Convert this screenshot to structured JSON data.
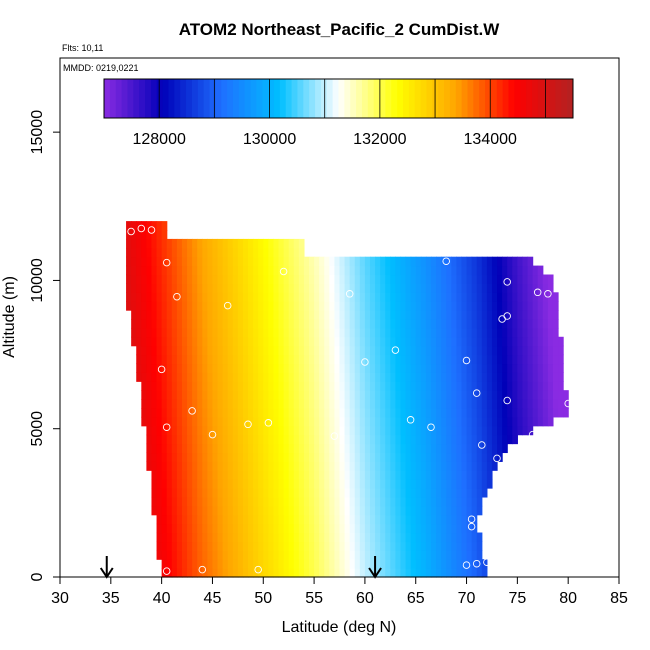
{
  "chart_data": {
    "type": "heatmap",
    "title": "ATOM2 Northeast_Pacific_2 CumDist.W",
    "flights_note": "Flts: 10,11",
    "dates_note": "MMDD: 0219,0221",
    "xlabel": "Latitude (deg N)",
    "ylabel": "Altitude (m)",
    "xlim": [
      30,
      85
    ],
    "ylim": [
      0,
      17500
    ],
    "x_ticks": [
      "30",
      "35",
      "40",
      "45",
      "50",
      "55",
      "60",
      "65",
      "70",
      "75",
      "80",
      "85"
    ],
    "y_ticks": [
      "0",
      "5000",
      "10000",
      "15000"
    ],
    "colorbar": {
      "range": [
        127000,
        135500
      ],
      "tick_labels": [
        "128000",
        "130000",
        "132000",
        "134000"
      ],
      "colors": [
        "#8a2be2",
        "#0000b8",
        "#1e6fff",
        "#00bfff",
        "#ffffff",
        "#ffff00",
        "#ffa500",
        "#ff0000",
        "#b22222"
      ]
    },
    "field": {
      "left_edge_lat": [
        [
          0,
          40.0
        ],
        [
          3000,
          39.0
        ],
        [
          6000,
          38.0
        ],
        [
          9000,
          36.8
        ],
        [
          10500,
          36.2
        ],
        [
          11900,
          36.5
        ]
      ],
      "right_edge_lat": [
        [
          0,
          72.0
        ],
        [
          2000,
          71.0
        ],
        [
          4500,
          74.0
        ],
        [
          5500,
          80.0
        ],
        [
          7000,
          79.5
        ],
        [
          9000,
          79.0
        ],
        [
          10000,
          78.5
        ],
        [
          11000,
          75.5
        ]
      ],
      "top_profile": [
        [
          36.5,
          11900
        ],
        [
          40.0,
          11900
        ],
        [
          40.5,
          11400
        ],
        [
          53.5,
          11400
        ],
        [
          54.0,
          10700
        ],
        [
          75.5,
          10700
        ]
      ],
      "value_stops": [
        [
          36,
          135400
        ],
        [
          40,
          134600
        ],
        [
          44,
          133800
        ],
        [
          50,
          132800
        ],
        [
          55,
          132000
        ],
        [
          60,
          131000
        ],
        [
          66,
          130000
        ],
        [
          71,
          129000
        ],
        [
          75,
          128000
        ],
        [
          79,
          127200
        ]
      ]
    },
    "markers": [
      [
        37.0,
        11650
      ],
      [
        38.0,
        11750
      ],
      [
        39.0,
        11700
      ],
      [
        40.5,
        10600
      ],
      [
        41.5,
        9450
      ],
      [
        46.5,
        9150
      ],
      [
        52.0,
        10300
      ],
      [
        58.5,
        9550
      ],
      [
        68.0,
        10650
      ],
      [
        74.0,
        9950
      ],
      [
        77.0,
        9600
      ],
      [
        78.0,
        9550
      ],
      [
        73.5,
        8700
      ],
      [
        74.0,
        8800
      ],
      [
        63.0,
        7650
      ],
      [
        60.0,
        7250
      ],
      [
        70.0,
        7300
      ],
      [
        71.0,
        6200
      ],
      [
        74.0,
        5950
      ],
      [
        80.0,
        5850
      ],
      [
        40.0,
        7000
      ],
      [
        43.0,
        5600
      ],
      [
        40.5,
        5050
      ],
      [
        45.0,
        4800
      ],
      [
        48.5,
        5150
      ],
      [
        50.5,
        5200
      ],
      [
        57.0,
        4750
      ],
      [
        64.5,
        5300
      ],
      [
        66.5,
        5050
      ],
      [
        71.5,
        4450
      ],
      [
        73.0,
        4000
      ],
      [
        76.5,
        4800
      ],
      [
        70.5,
        1950
      ],
      [
        70.5,
        1700
      ],
      [
        70.0,
        400
      ],
      [
        71.0,
        450
      ],
      [
        72.0,
        500
      ],
      [
        40.5,
        200
      ],
      [
        44.0,
        250
      ],
      [
        49.5,
        250
      ]
    ],
    "arrows_lat": [
      34.6,
      61.0
    ]
  }
}
